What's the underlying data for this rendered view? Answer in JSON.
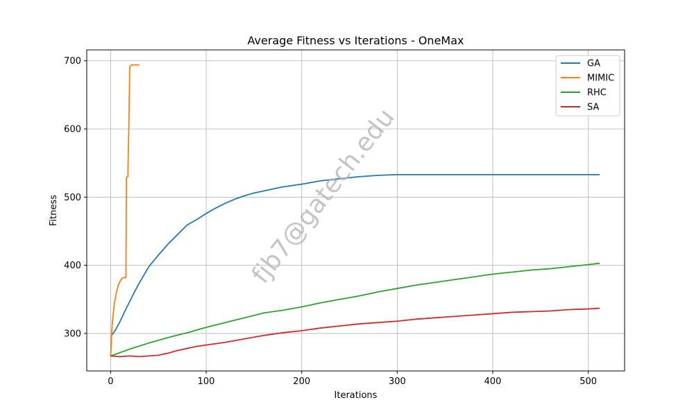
{
  "chart_data": {
    "type": "line",
    "title": "Average Fitness vs Iterations - OneMax",
    "xlabel": "Iterations",
    "ylabel": "Fitness",
    "xlim": [
      -25,
      538
    ],
    "ylim": [
      245,
      716
    ],
    "xticks": [
      0,
      100,
      200,
      300,
      400,
      500
    ],
    "yticks": [
      300,
      400,
      500,
      600,
      700
    ],
    "grid": true,
    "legend_position": "top-right",
    "series": [
      {
        "name": "GA",
        "color": "#1f77b4",
        "x": [
          0,
          1,
          5,
          10,
          15,
          20,
          25,
          30,
          40,
          50,
          60,
          70,
          80,
          90,
          100,
          110,
          120,
          130,
          140,
          150,
          160,
          170,
          180,
          200,
          220,
          240,
          260,
          280,
          300,
          320,
          350,
          400,
          450,
          512
        ],
        "y": [
          267,
          297,
          305,
          318,
          333,
          347,
          361,
          374,
          398,
          415,
          431,
          445,
          459,
          467,
          476,
          484,
          491,
          497,
          502,
          506,
          509,
          512,
          515,
          519,
          524,
          527,
          530,
          532,
          533,
          533,
          533,
          533,
          533,
          533
        ]
      },
      {
        "name": "MIMIC",
        "color": "#ff7f0e",
        "x": [
          0,
          1,
          2,
          4,
          6,
          8,
          10,
          12,
          14,
          16,
          16.5,
          18,
          19,
          20,
          21,
          22,
          25,
          30
        ],
        "y": [
          267,
          298,
          320,
          345,
          360,
          371,
          377,
          381,
          382,
          382,
          529,
          530,
          600,
          690,
          693,
          694,
          694,
          694
        ]
      },
      {
        "name": "RHC",
        "color": "#2ca02c",
        "x": [
          0,
          20,
          40,
          60,
          80,
          100,
          120,
          140,
          160,
          180,
          200,
          220,
          240,
          260,
          280,
          300,
          320,
          340,
          360,
          380,
          400,
          420,
          440,
          460,
          480,
          500,
          512
        ],
        "y": [
          267,
          277,
          286,
          294,
          301,
          309,
          316,
          323,
          330,
          334,
          339,
          345,
          350,
          355,
          361,
          366,
          371,
          375,
          379,
          383,
          387,
          390,
          393,
          395,
          398,
          401,
          403
        ]
      },
      {
        "name": "SA",
        "color": "#d62728",
        "x": [
          0,
          10,
          20,
          30,
          40,
          50,
          60,
          70,
          80,
          90,
          100,
          120,
          140,
          160,
          180,
          200,
          220,
          240,
          260,
          280,
          300,
          320,
          340,
          360,
          380,
          400,
          420,
          440,
          460,
          480,
          500,
          512
        ],
        "y": [
          267,
          266,
          267,
          266,
          267,
          268,
          271,
          275,
          278,
          281,
          283,
          287,
          292,
          297,
          301,
          304,
          308,
          311,
          314,
          316,
          318,
          321,
          323,
          325,
          327,
          329,
          331,
          332,
          333,
          335,
          336,
          337
        ]
      }
    ]
  },
  "watermark": "fjb7@gatech.edu"
}
